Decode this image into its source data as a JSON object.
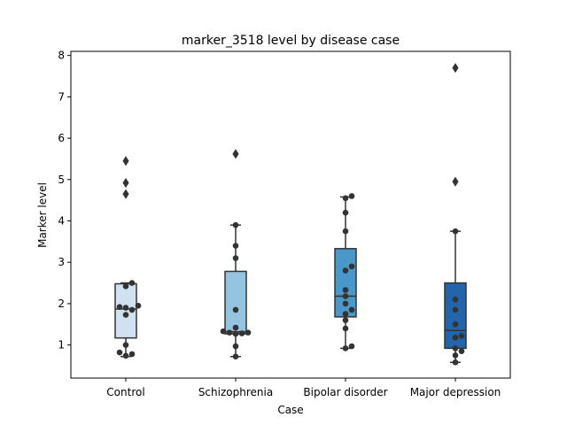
{
  "chart_data": {
    "type": "box",
    "title": "marker_3518 level by disease case",
    "xlabel": "Case",
    "ylabel": "Marker level",
    "ylim": [
      0.2,
      8.1
    ],
    "yticks": [
      1,
      2,
      3,
      4,
      5,
      6,
      7,
      8
    ],
    "grid": false,
    "categories": [
      "Control",
      "Schizophrenia",
      "Bipolar disorder",
      "Major depression"
    ],
    "colors": [
      "#d0e1f2",
      "#94c4df",
      "#4a98c9",
      "#2464ab"
    ],
    "boxes": [
      {
        "q1": 1.17,
        "median": 1.87,
        "q3": 2.48,
        "whisker_low": 0.72,
        "whisker_high": 2.5,
        "outliers": [
          4.65,
          4.92,
          5.45
        ]
      },
      {
        "q1": 1.27,
        "median": 1.32,
        "q3": 2.78,
        "whisker_low": 0.72,
        "whisker_high": 3.9,
        "outliers": [
          5.62
        ]
      },
      {
        "q1": 1.68,
        "median": 2.18,
        "q3": 3.33,
        "whisker_low": 0.92,
        "whisker_high": 4.58,
        "outliers": []
      },
      {
        "q1": 0.92,
        "median": 1.35,
        "q3": 2.5,
        "whisker_low": 0.58,
        "whisker_high": 3.75,
        "outliers": [
          4.95,
          7.7
        ]
      }
    ],
    "points": [
      [
        0.78,
        0.74,
        0.82,
        1.0,
        1.73,
        1.85,
        1.92,
        1.9,
        1.95,
        2.42,
        2.5
      ],
      [
        0.72,
        0.97,
        1.27,
        1.28,
        1.3,
        1.3,
        1.33,
        1.42,
        1.85,
        3.1,
        3.4,
        3.9
      ],
      [
        0.92,
        0.97,
        1.4,
        1.6,
        1.75,
        1.85,
        2.0,
        2.18,
        2.33,
        2.8,
        2.9,
        3.75,
        4.2,
        4.55,
        4.6
      ],
      [
        0.58,
        0.75,
        0.85,
        0.92,
        1.18,
        1.22,
        1.5,
        1.85,
        2.1,
        3.75
      ]
    ]
  }
}
